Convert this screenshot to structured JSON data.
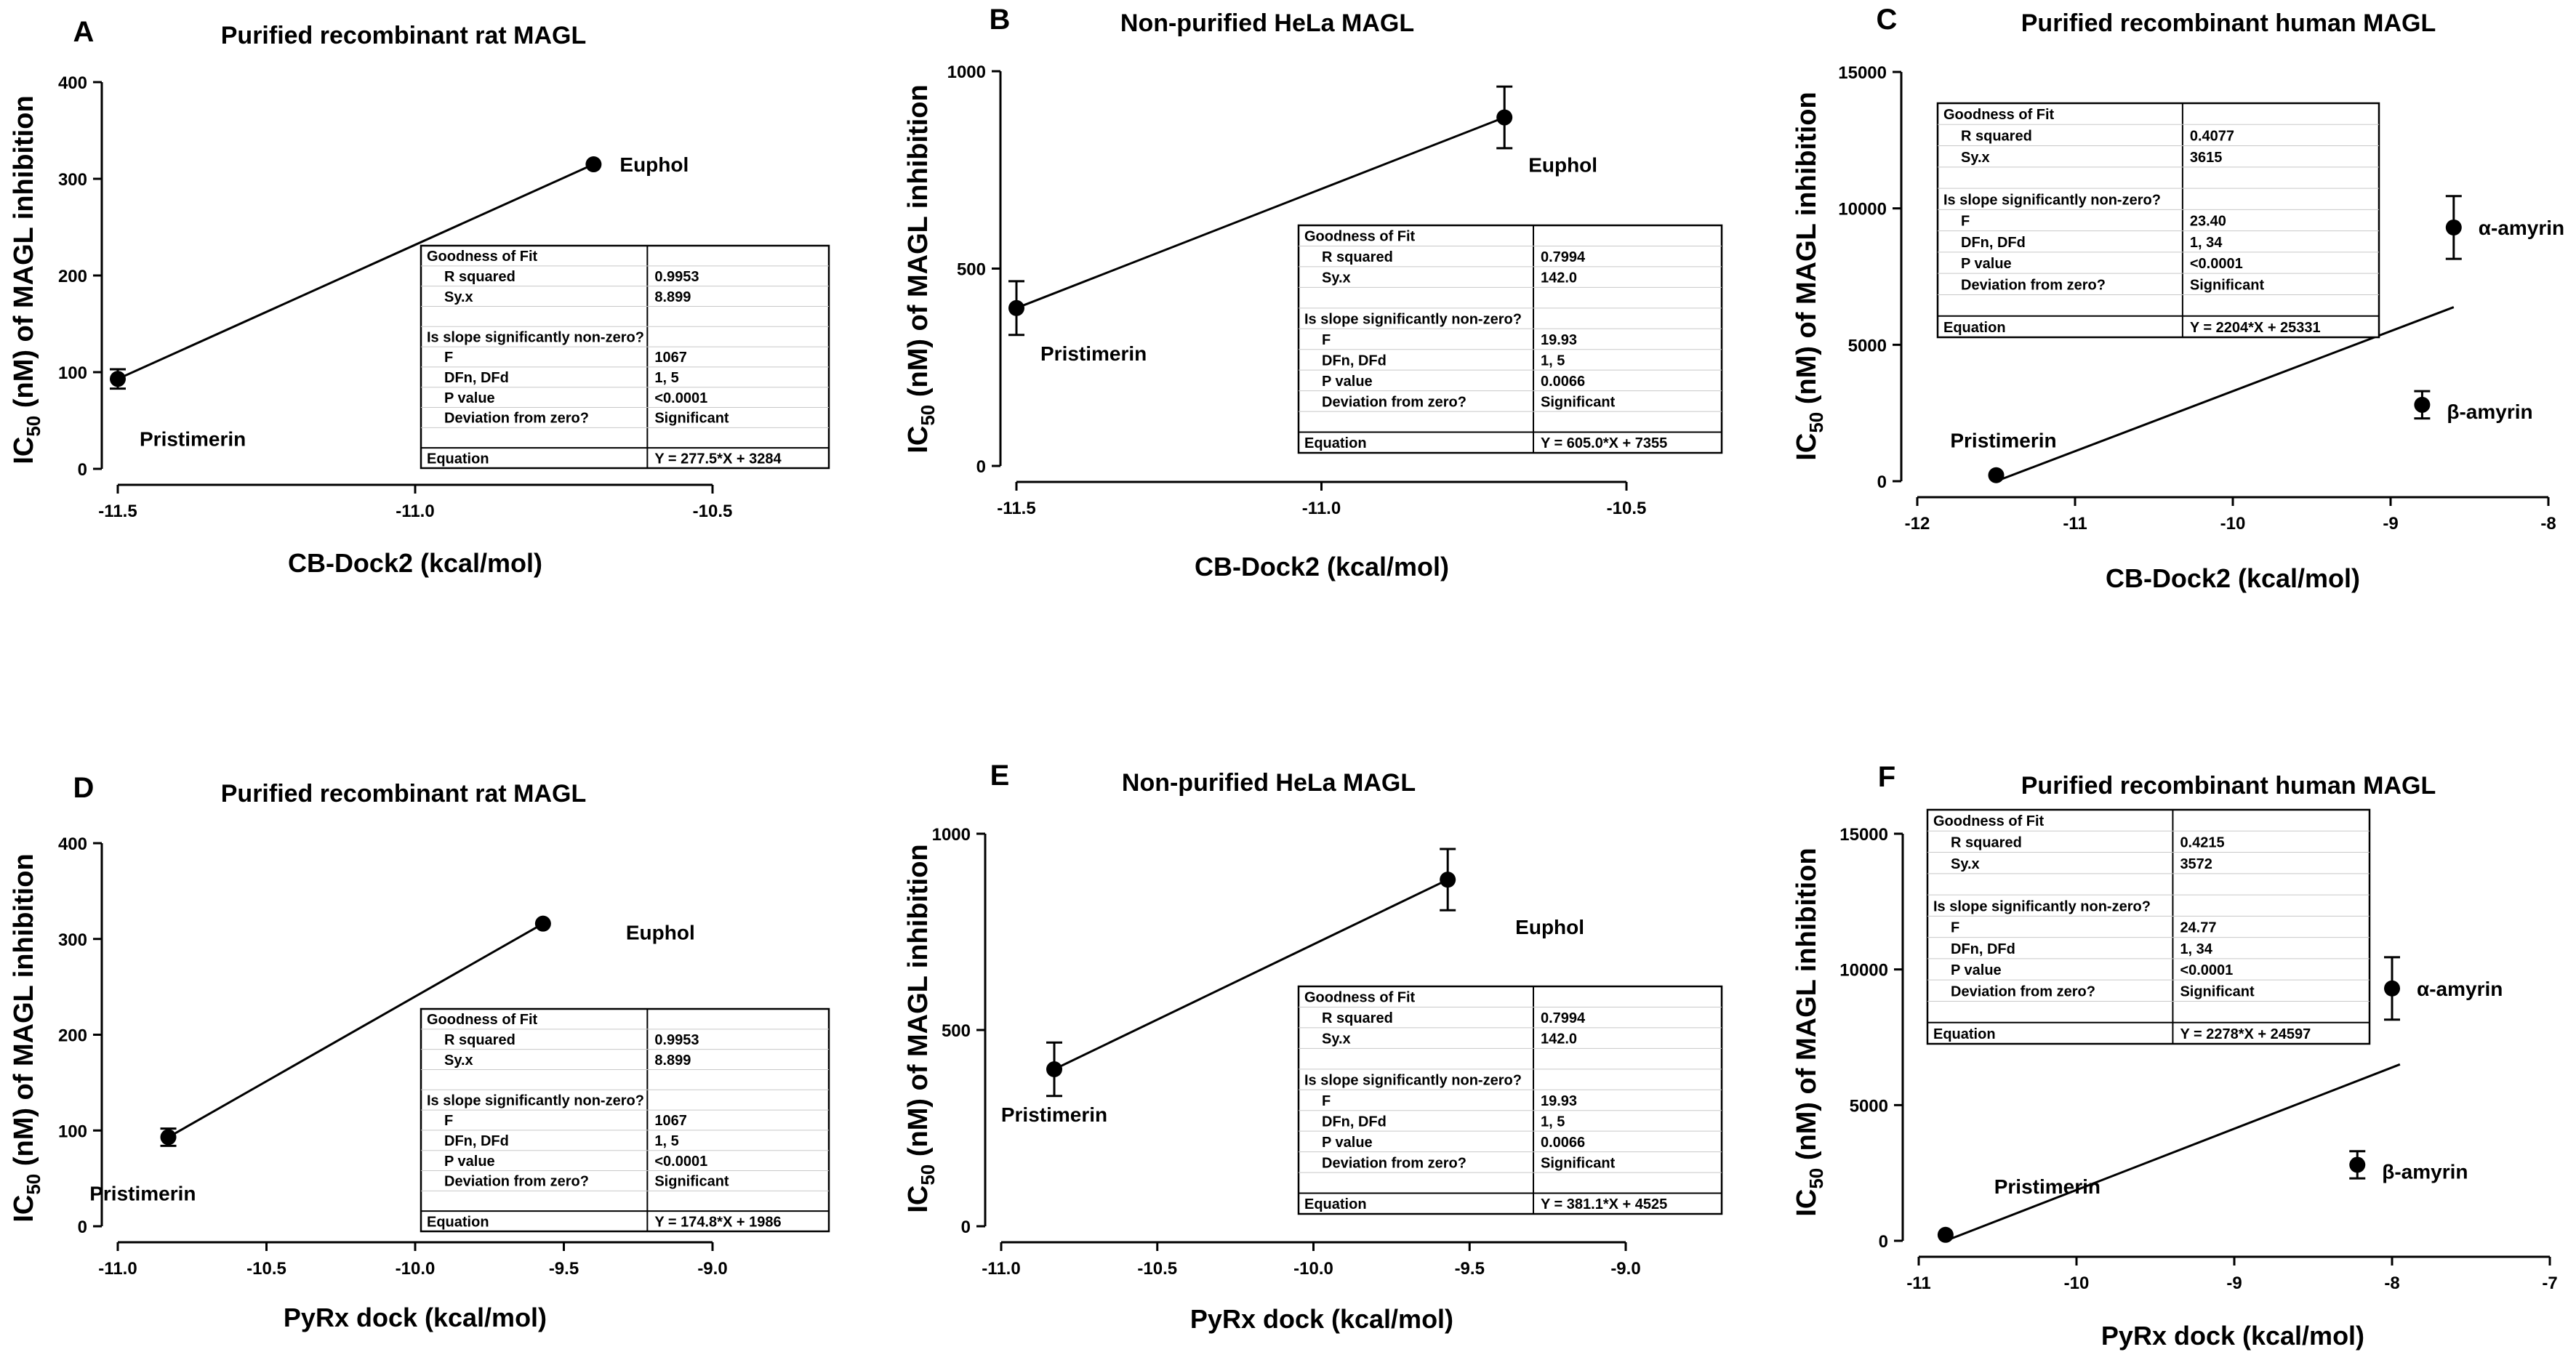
{
  "chart_data": [
    {
      "panel": "A",
      "type": "scatter",
      "title": "Purified recombinant rat MAGL",
      "xlabel": "CB-Dock2 (kcal/mol)",
      "ylabel": {
        "pre": "IC",
        "sub": "50",
        "post": " (nM) of MAGL inhibition"
      },
      "xlim": [
        -11.5,
        -10.5
      ],
      "ylim": [
        0,
        400
      ],
      "xticks": [
        -11.5,
        -11.0,
        -10.5
      ],
      "xtick_labels": [
        "-11.5",
        "-11.0",
        "-10.5"
      ],
      "yticks": [
        0,
        100,
        200,
        300,
        400
      ],
      "ytick_labels": [
        "0",
        "100",
        "200",
        "300",
        "400"
      ],
      "points": [
        {
          "label": "Pristimerin",
          "x": -11.5,
          "y": 93,
          "err": 10
        },
        {
          "label": "Euphol",
          "x": -10.7,
          "y": 315,
          "err": 0
        }
      ],
      "fit_line": {
        "x1": -11.5,
        "y1": 93,
        "x2": -10.7,
        "y2": 315
      },
      "stats": {
        "goodness_header": "Goodness of Fit",
        "r_squared_label": "R squared",
        "r_squared": "0.9953",
        "syx_label": "Sy.x",
        "syx": "8.899",
        "slope_header": "Is slope significantly non-zero?",
        "f_label": "F",
        "f": "1067",
        "dfn_label": "DFn, DFd",
        "dfn": "1, 5",
        "p_label": "P value",
        "p": "<0.0001",
        "dev_label": "Deviation from zero?",
        "dev": "Significant",
        "eq_label": "Equation",
        "equation": "Y = 277.5*X + 3284"
      }
    },
    {
      "panel": "B",
      "type": "scatter",
      "title": "Non-purified  HeLa MAGL",
      "xlabel": "CB-Dock2 (kcal/mol)",
      "ylabel": {
        "pre": "IC",
        "sub": "50",
        "post": " (nM) of MAGL inhibition"
      },
      "xlim": [
        -11.5,
        -10.5
      ],
      "ylim": [
        0,
        1000
      ],
      "xticks": [
        -11.5,
        -11.0,
        -10.5
      ],
      "xtick_labels": [
        "-11.5",
        "-11.0",
        "-10.5"
      ],
      "yticks": [
        0,
        500,
        1000
      ],
      "ytick_labels": [
        "0",
        "500",
        "1000"
      ],
      "points": [
        {
          "label": "Pristimerin",
          "x": -11.5,
          "y": 400,
          "err": 68
        },
        {
          "label": "Euphol",
          "x": -10.7,
          "y": 883,
          "err": 78
        }
      ],
      "fit_line": {
        "x1": -11.5,
        "y1": 400,
        "x2": -10.7,
        "y2": 883
      },
      "stats": {
        "goodness_header": "Goodness of Fit",
        "r_squared_label": "R squared",
        "r_squared": "0.7994",
        "syx_label": "Sy.x",
        "syx": "142.0",
        "slope_header": "Is slope significantly non-zero?",
        "f_label": "F",
        "f": "19.93",
        "dfn_label": "DFn, DFd",
        "dfn": "1, 5",
        "p_label": "P value",
        "p": "0.0066",
        "dev_label": "Deviation from zero?",
        "dev": "Significant",
        "eq_label": "Equation",
        "equation": "Y = 605.0*X + 7355"
      }
    },
    {
      "panel": "C",
      "type": "scatter",
      "title": "Purified recombinant human MAGL",
      "xlabel": "CB-Dock2 (kcal/mol)",
      "ylabel": {
        "pre": "IC",
        "sub": "50",
        "post": " (nM) of MAGL inhibition"
      },
      "xlim": [
        -12,
        -8
      ],
      "ylim": [
        0,
        15000
      ],
      "xticks": [
        -12,
        -11,
        -10,
        -9,
        -8
      ],
      "xtick_labels": [
        "-12",
        "-11",
        "-10",
        "-9",
        "-8"
      ],
      "yticks": [
        0,
        5000,
        10000,
        15000
      ],
      "ytick_labels": [
        "0",
        "5000",
        "10000",
        "15000"
      ],
      "points": [
        {
          "label": "Pristimerin",
          "x": -11.5,
          "y": 220,
          "err": 0
        },
        {
          "label": "β-amyrin",
          "x": -8.8,
          "y": 2800,
          "err": 500
        },
        {
          "label": "α-amyrin",
          "x": -8.6,
          "y": 9300,
          "err": 1150
        }
      ],
      "fit_line": {
        "x1": -11.5,
        "y1": 0,
        "x2": -8.6,
        "y2": 6380
      },
      "stats": {
        "goodness_header": "Goodness of Fit",
        "r_squared_label": "R squared",
        "r_squared": "0.4077",
        "syx_label": "Sy.x",
        "syx": "3615",
        "slope_header": "Is slope significantly non-zero?",
        "f_label": "F",
        "f": "23.40",
        "dfn_label": "DFn, DFd",
        "dfn": "1, 34",
        "p_label": "P value",
        "p": "<0.0001",
        "dev_label": "Deviation from zero?",
        "dev": "Significant",
        "eq_label": "Equation",
        "equation": "Y = 2204*X + 25331"
      }
    },
    {
      "panel": "D",
      "type": "scatter",
      "title": "Purified recombinant rat MAGL",
      "xlabel": "PyRx dock (kcal/mol)",
      "ylabel": {
        "pre": "IC",
        "sub": "50",
        "post": " (nM) of MAGL inhibition"
      },
      "xlim": [
        -11.0,
        -9.0
      ],
      "ylim": [
        0,
        400
      ],
      "xticks": [
        -11.0,
        -10.5,
        -10.0,
        -9.5,
        -9.0
      ],
      "xtick_labels": [
        "-11.0",
        "-10.5",
        "-10.0",
        "-9.5",
        "-9.0"
      ],
      "yticks": [
        0,
        100,
        200,
        300,
        400
      ],
      "ytick_labels": [
        "0",
        "100",
        "200",
        "300",
        "400"
      ],
      "points": [
        {
          "label": "Pristimerin",
          "x": -10.83,
          "y": 93,
          "err": 9
        },
        {
          "label": "Euphol",
          "x": -9.57,
          "y": 316,
          "err": 0
        }
      ],
      "fit_line": {
        "x1": -10.83,
        "y1": 93,
        "x2": -9.57,
        "y2": 316
      },
      "stats": {
        "goodness_header": "Goodness of Fit",
        "r_squared_label": "R squared",
        "r_squared": "0.9953",
        "syx_label": "Sy.x",
        "syx": "8.899",
        "slope_header": "Is slope significantly non-zero?",
        "f_label": "F",
        "f": "1067",
        "dfn_label": "DFn, DFd",
        "dfn": "1, 5",
        "p_label": "P value",
        "p": "<0.0001",
        "dev_label": "Deviation from zero?",
        "dev": "Significant",
        "eq_label": "Equation",
        "equation": "Y = 174.8*X + 1986"
      }
    },
    {
      "panel": "E",
      "type": "scatter",
      "title": "Non-purified  HeLa MAGL",
      "xlabel": "PyRx dock (kcal/mol)",
      "ylabel": {
        "pre": "IC",
        "sub": "50",
        "post": " (nM) of MAGL inhibition"
      },
      "xlim": [
        -11.0,
        -9.0
      ],
      "ylim": [
        0,
        1000
      ],
      "xticks": [
        -11.0,
        -10.5,
        -10.0,
        -9.5,
        -9.0
      ],
      "xtick_labels": [
        "-11.0",
        "-10.5",
        "-10.0",
        "-9.5",
        "-9.0"
      ],
      "yticks": [
        0,
        500,
        1000
      ],
      "ytick_labels": [
        "0",
        "500",
        "1000"
      ],
      "points": [
        {
          "label": "Pristimerin",
          "x": -10.83,
          "y": 400,
          "err": 68
        },
        {
          "label": "Euphol",
          "x": -9.57,
          "y": 883,
          "err": 78
        }
      ],
      "fit_line": {
        "x1": -10.83,
        "y1": 400,
        "x2": -9.57,
        "y2": 883
      },
      "stats": {
        "goodness_header": "Goodness of Fit",
        "r_squared_label": "R squared",
        "r_squared": "0.7994",
        "syx_label": "Sy.x",
        "syx": "142.0",
        "slope_header": "Is slope significantly non-zero?",
        "f_label": "F",
        "f": "19.93",
        "dfn_label": "DFn, DFd",
        "dfn": "1, 5",
        "p_label": "P value",
        "p": "0.0066",
        "dev_label": "Deviation from zero?",
        "dev": "Significant",
        "eq_label": "Equation",
        "equation": "Y = 381.1*X + 4525"
      }
    },
    {
      "panel": "F",
      "type": "scatter",
      "title": "Purified recombinant human MAGL",
      "xlabel": "PyRx dock (kcal/mol)",
      "ylabel": {
        "pre": "IC",
        "sub": "50",
        "post": " (nM) of MAGL inhibition"
      },
      "xlim": [
        -11,
        -7
      ],
      "ylim": [
        0,
        15000
      ],
      "xticks": [
        -11,
        -10,
        -9,
        -8,
        -7
      ],
      "xtick_labels": [
        "-11",
        "-10",
        "-9",
        "-8",
        "-7"
      ],
      "yticks": [
        0,
        5000,
        10000,
        15000
      ],
      "ytick_labels": [
        "0",
        "5000",
        "10000",
        "15000"
      ],
      "points": [
        {
          "label": "Pristimerin",
          "x": -10.83,
          "y": 220,
          "err": 0
        },
        {
          "label": "β-amyrin",
          "x": -8.22,
          "y": 2800,
          "err": 500
        },
        {
          "label": "α-amyrin",
          "x": -8.0,
          "y": 9300,
          "err": 1150
        }
      ],
      "fit_line": {
        "x1": -10.83,
        "y1": 0,
        "x2": -7.95,
        "y2": 6500
      },
      "stats": {
        "goodness_header": "Goodness of Fit",
        "r_squared_label": "R squared",
        "r_squared": "0.4215",
        "syx_label": "Sy.x",
        "syx": "3572",
        "slope_header": "Is slope significantly non-zero?",
        "f_label": "F",
        "f": "24.77",
        "dfn_label": "DFn, DFd",
        "dfn": "1, 34",
        "p_label": "P value",
        "p": "<0.0001",
        "dev_label": "Deviation from zero?",
        "dev": "Significant",
        "eq_label": "Equation",
        "equation": "Y = 2278*X + 24597"
      }
    }
  ]
}
